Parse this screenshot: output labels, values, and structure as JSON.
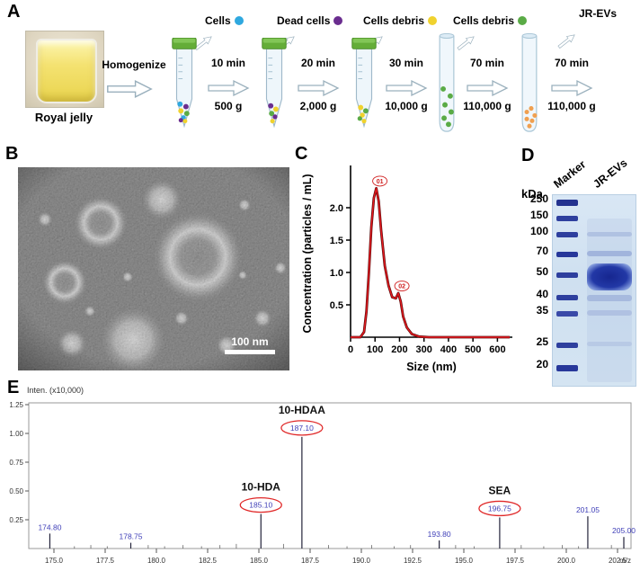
{
  "figure": {
    "palette": {
      "cells": "#2fa8df",
      "dead_cells": "#6a2d8f",
      "debris_yellow": "#f0d22e",
      "debris_green": "#5aab46",
      "evs_orange": "#f0a050"
    },
    "panel_a": {
      "label": "A",
      "source_label": "Royal jelly",
      "homogenize_label": "Homogenize",
      "steps": [
        {
          "fraction": "Cells",
          "time": "10 min",
          "force": "500 g",
          "dot_color": "#2fa8df"
        },
        {
          "fraction": "Dead cells",
          "time": "20 min",
          "force": "2,000 g",
          "dot_color": "#6a2d8f"
        },
        {
          "fraction": "Cells debris",
          "time": "30 min",
          "force": "10,000 g",
          "dot_color": "#f0d22e"
        },
        {
          "fraction": "Cells debris",
          "time": "70 min",
          "force": "110,000 g",
          "dot_color": "#5aab46"
        },
        {
          "fraction": "JR-EVs",
          "time": "70 min",
          "force": "110,000 g",
          "dot_color": null
        }
      ]
    },
    "panel_b": {
      "label": "B",
      "scale_bar_label": "100 nm"
    },
    "panel_c": {
      "label": "C"
    },
    "panel_d": {
      "label": "D",
      "unit_label": "kDa",
      "lane_labels": [
        "Marker",
        "JR-EVs"
      ],
      "marker_weights": [
        "250",
        "150",
        "100",
        "70",
        "50",
        "40",
        "35",
        "25",
        "20"
      ]
    },
    "panel_e": {
      "label": "E"
    }
  },
  "chart_data": [
    {
      "id": "nta-size-distribution",
      "type": "line",
      "xlabel": "Size (nm)",
      "ylabel": "Concentration (particles / mL)",
      "xlim": [
        0,
        650
      ],
      "ylim": [
        0,
        2.5
      ],
      "x_ticks": [
        0,
        100,
        200,
        300,
        400,
        500,
        600
      ],
      "y_ticks": [
        0.5,
        1.0,
        1.5,
        2.0
      ],
      "line_color": "#e8191f",
      "outline_color": "#5a0a0a",
      "x": [
        0,
        40,
        55,
        65,
        75,
        85,
        95,
        105,
        115,
        125,
        140,
        155,
        170,
        185,
        195,
        205,
        215,
        230,
        250,
        280,
        320,
        400,
        500,
        600,
        650
      ],
      "y": [
        0,
        0,
        0.08,
        0.4,
        1.0,
        1.7,
        2.15,
        2.3,
        2.1,
        1.65,
        1.1,
        0.8,
        0.62,
        0.6,
        0.68,
        0.55,
        0.32,
        0.15,
        0.05,
        0.01,
        0,
        0,
        0,
        0,
        0
      ],
      "annotations": [
        {
          "label": "01",
          "x": 105,
          "y": 2.3
        },
        {
          "label": "02",
          "x": 195,
          "y": 0.68
        }
      ]
    },
    {
      "id": "mass-spectrum",
      "type": "bar",
      "ylabel": "Inten. (x10,000)",
      "x_unit": "m/z",
      "xlim": [
        174.5,
        203.3
      ],
      "ylim": [
        0,
        1.3
      ],
      "x_ticks": [
        "175.0",
        "177.5",
        "180.0",
        "182.5",
        "185.0",
        "187.5",
        "190.0",
        "192.5",
        "195.0",
        "197.5",
        "200.0",
        "202.5"
      ],
      "y_ticks": [
        "0.25",
        "0.50",
        "0.75",
        "1.00",
        "1.25"
      ],
      "peak_color": "#23233a",
      "label_color": "#3f3fb8",
      "highlight_color": "#e02828",
      "peaks": [
        {
          "mz": 174.8,
          "intensity": 0.13,
          "label": "174.80",
          "highlight": false
        },
        {
          "mz": 178.75,
          "intensity": 0.05,
          "label": "178.75",
          "highlight": false
        },
        {
          "mz": 185.1,
          "intensity": 0.3,
          "label": "185.10",
          "highlight": true,
          "compound": "10-HDA"
        },
        {
          "mz": 187.1,
          "intensity": 0.97,
          "label": "187.10",
          "highlight": true,
          "compound": "10-HDAA"
        },
        {
          "mz": 193.8,
          "intensity": 0.07,
          "label": "193.80",
          "highlight": false
        },
        {
          "mz": 196.75,
          "intensity": 0.27,
          "label": "196.75",
          "highlight": true,
          "compound": "SEA"
        },
        {
          "mz": 201.05,
          "intensity": 0.28,
          "label": "201.05",
          "highlight": false
        },
        {
          "mz": 205.0,
          "intensity": 0.1,
          "label": "205.00",
          "highlight": false
        }
      ],
      "noise": [
        {
          "mz": 176.0,
          "intensity": 0.02
        },
        {
          "mz": 176.8,
          "intensity": 0.03
        },
        {
          "mz": 177.6,
          "intensity": 0.02
        },
        {
          "mz": 179.6,
          "intensity": 0.03
        },
        {
          "mz": 180.4,
          "intensity": 0.02
        },
        {
          "mz": 181.3,
          "intensity": 0.03
        },
        {
          "mz": 182.2,
          "intensity": 0.02
        },
        {
          "mz": 183.1,
          "intensity": 0.03
        },
        {
          "mz": 183.9,
          "intensity": 0.04
        },
        {
          "mz": 186.2,
          "intensity": 0.04
        },
        {
          "mz": 188.4,
          "intensity": 0.03
        },
        {
          "mz": 189.3,
          "intensity": 0.02
        },
        {
          "mz": 190.5,
          "intensity": 0.03
        },
        {
          "mz": 191.6,
          "intensity": 0.02
        },
        {
          "mz": 192.4,
          "intensity": 0.03
        },
        {
          "mz": 194.6,
          "intensity": 0.03
        },
        {
          "mz": 195.5,
          "intensity": 0.02
        },
        {
          "mz": 197.8,
          "intensity": 0.03
        },
        {
          "mz": 198.9,
          "intensity": 0.02
        },
        {
          "mz": 199.8,
          "intensity": 0.03
        },
        {
          "mz": 200.6,
          "intensity": 0.02
        },
        {
          "mz": 202.2,
          "intensity": 0.03
        }
      ]
    }
  ]
}
